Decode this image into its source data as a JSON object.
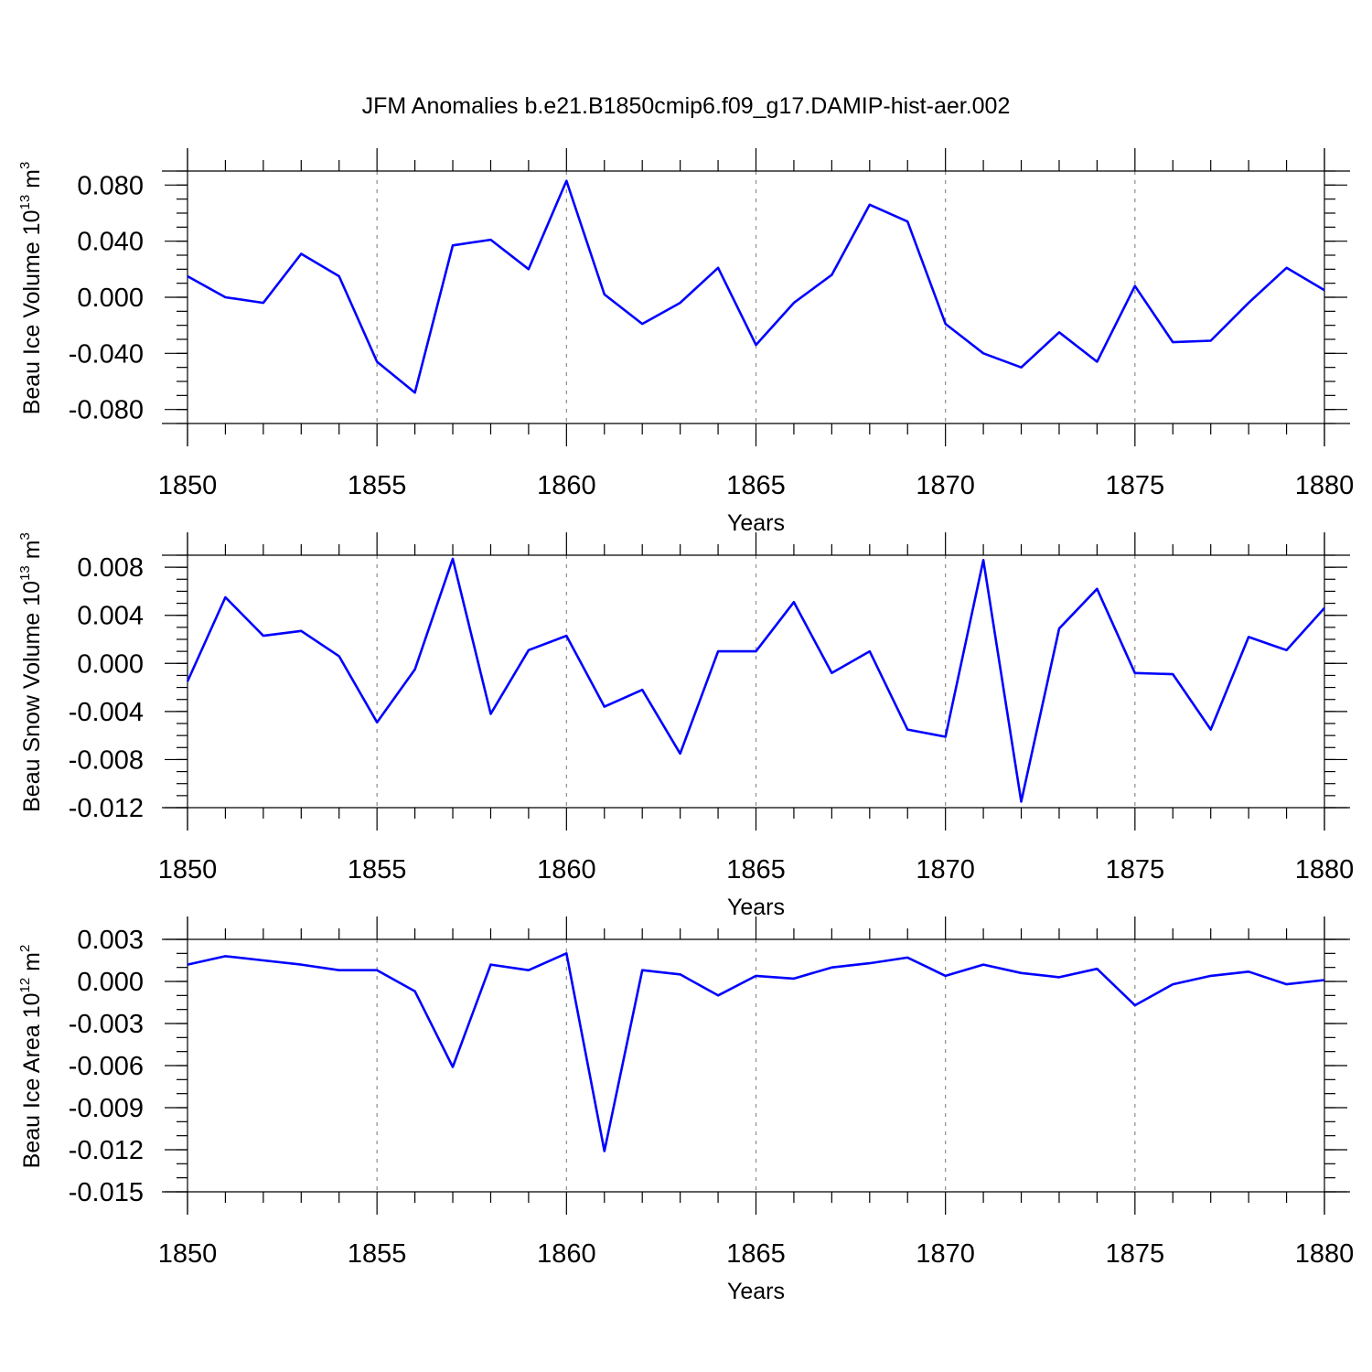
{
  "chart_data": [
    {
      "type": "line",
      "title": "JFM Anomalies b.e21.B1850cmip6.f09_g17.DAMIP-hist-aer.002",
      "xlabel": "Years",
      "ylabel_main": "Beau Ice Volume 10",
      "ylabel_exp": "13",
      "ylabel_unit": " m",
      "ylabel_unit_exp": "3",
      "xlim": [
        1850,
        1880
      ],
      "ylim": [
        -0.09,
        0.09
      ],
      "x_ticks": [
        1850,
        1855,
        1860,
        1865,
        1870,
        1875,
        1880
      ],
      "x_tick_labels": [
        "1850",
        "1855",
        "1860",
        "1865",
        "1870",
        "1875",
        "1880"
      ],
      "y_ticks": [
        0.08,
        0.04,
        0.0,
        -0.04,
        -0.08
      ],
      "y_tick_labels": [
        "0.080",
        "0.040",
        "0.000",
        "-0.040",
        "-0.080"
      ],
      "y_minor_step": 0.01,
      "x": [
        1850,
        1851,
        1852,
        1853,
        1854,
        1855,
        1856,
        1857,
        1858,
        1859,
        1860,
        1861,
        1862,
        1863,
        1864,
        1865,
        1866,
        1867,
        1868,
        1869,
        1870,
        1871,
        1872,
        1873,
        1874,
        1875,
        1876,
        1877,
        1878,
        1879,
        1880
      ],
      "series": [
        {
          "name": "Beau Ice Volume",
          "color": "#0000ff",
          "values": [
            0.015,
            0.0,
            -0.004,
            0.031,
            0.015,
            -0.046,
            -0.068,
            0.037,
            0.041,
            0.02,
            0.083,
            0.002,
            -0.019,
            -0.004,
            0.021,
            -0.034,
            -0.004,
            0.016,
            0.066,
            0.054,
            -0.019,
            -0.04,
            -0.05,
            -0.025,
            -0.046,
            0.008,
            -0.032,
            -0.031,
            -0.004,
            0.021,
            0.005
          ]
        }
      ]
    },
    {
      "type": "line",
      "xlabel": "Years",
      "ylabel_main": "Beau Snow Volume 10",
      "ylabel_exp": "13",
      "ylabel_unit": " m",
      "ylabel_unit_exp": "3",
      "xlim": [
        1850,
        1880
      ],
      "ylim": [
        -0.012,
        0.009
      ],
      "x_ticks": [
        1850,
        1855,
        1860,
        1865,
        1870,
        1875,
        1880
      ],
      "x_tick_labels": [
        "1850",
        "1855",
        "1860",
        "1865",
        "1870",
        "1875",
        "1880"
      ],
      "y_ticks": [
        0.008,
        0.004,
        0.0,
        -0.004,
        -0.008,
        -0.012
      ],
      "y_tick_labels": [
        "0.008",
        "0.004",
        "0.000",
        "-0.004",
        "-0.008",
        "-0.012"
      ],
      "y_minor_step": 0.001,
      "x": [
        1850,
        1851,
        1852,
        1853,
        1854,
        1855,
        1856,
        1857,
        1858,
        1859,
        1860,
        1861,
        1862,
        1863,
        1864,
        1865,
        1866,
        1867,
        1868,
        1869,
        1870,
        1871,
        1872,
        1873,
        1874,
        1875,
        1876,
        1877,
        1878,
        1879,
        1880
      ],
      "series": [
        {
          "name": "Beau Snow Volume",
          "color": "#0000ff",
          "values": [
            -0.0015,
            0.0055,
            0.0023,
            0.0027,
            0.0006,
            -0.0049,
            -0.0005,
            0.0087,
            -0.0042,
            0.0011,
            0.0023,
            -0.0036,
            -0.0022,
            -0.0075,
            0.001,
            0.001,
            0.0051,
            -0.0008,
            0.001,
            -0.0055,
            -0.0061,
            0.0086,
            -0.0115,
            0.0029,
            0.0062,
            -0.0008,
            -0.0009,
            -0.0055,
            0.0022,
            0.0011,
            0.0046
          ]
        }
      ]
    },
    {
      "type": "line",
      "xlabel": "Years",
      "ylabel_main": "Beau Ice Area 10",
      "ylabel_exp": "12",
      "ylabel_unit": " m",
      "ylabel_unit_exp": "2",
      "xlim": [
        1850,
        1880
      ],
      "ylim": [
        -0.015,
        0.003
      ],
      "x_ticks": [
        1850,
        1855,
        1860,
        1865,
        1870,
        1875,
        1880
      ],
      "x_tick_labels": [
        "1850",
        "1855",
        "1860",
        "1865",
        "1870",
        "1875",
        "1880"
      ],
      "y_ticks": [
        0.003,
        0.0,
        -0.003,
        -0.006,
        -0.009,
        -0.012,
        -0.015
      ],
      "y_tick_labels": [
        "0.003",
        "0.000",
        "-0.003",
        "-0.006",
        "-0.009",
        "-0.012",
        "-0.015"
      ],
      "y_minor_step": 0.001,
      "x": [
        1850,
        1851,
        1852,
        1853,
        1854,
        1855,
        1856,
        1857,
        1858,
        1859,
        1860,
        1861,
        1862,
        1863,
        1864,
        1865,
        1866,
        1867,
        1868,
        1869,
        1870,
        1871,
        1872,
        1873,
        1874,
        1875,
        1876,
        1877,
        1878,
        1879,
        1880
      ],
      "series": [
        {
          "name": "Beau Ice Area",
          "color": "#0000ff",
          "values": [
            0.0012,
            0.0018,
            0.0015,
            0.0012,
            0.0008,
            0.0008,
            -0.0007,
            -0.0061,
            0.0012,
            0.0008,
            0.002,
            -0.0121,
            0.0008,
            0.0005,
            -0.001,
            0.0004,
            0.0002,
            0.001,
            0.0013,
            0.0017,
            0.0004,
            0.0012,
            0.0006,
            0.0003,
            0.0009,
            -0.0017,
            -0.0002,
            0.0004,
            0.0007,
            -0.0002,
            0.0001
          ]
        }
      ]
    }
  ]
}
